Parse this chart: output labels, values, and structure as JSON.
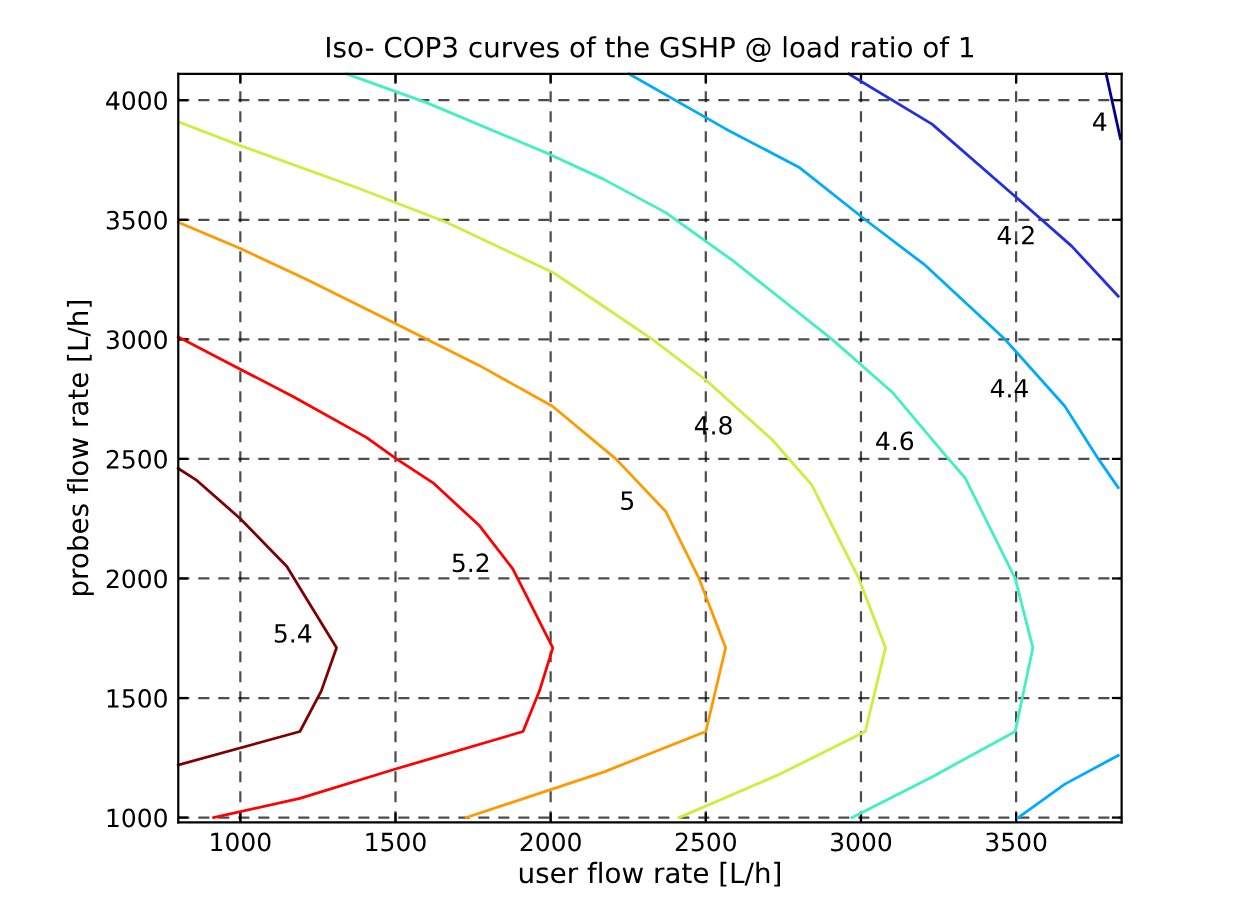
{
  "chart_data": {
    "type": "line",
    "title": "Iso- COP3 curves of the GSHP @ load ratio of 1",
    "xlabel": "user flow rate [L/h]",
    "ylabel": "probes flow rate [L/h]",
    "xlim": [
      800,
      3840
    ],
    "ylim": [
      980,
      4110
    ],
    "xticks": [
      1000,
      1500,
      2000,
      2500,
      3000,
      3500
    ],
    "yticks": [
      1000,
      1500,
      2000,
      2500,
      3000,
      3500,
      4000
    ],
    "grid": true,
    "marker": "none",
    "line_style": "solid",
    "series": [
      {
        "name": "5.4",
        "color": "#800000",
        "x": [
          800,
          860,
          1000,
          1150,
          1192,
          1310,
          1261,
          1192,
          800
        ],
        "values": [
          2460,
          2410,
          2250,
          2050,
          1960,
          1710,
          1530,
          1360,
          1220
        ]
      },
      {
        "name": "5.2",
        "color": "#ff0000",
        "x": [
          800,
          978,
          1171,
          1406,
          1503,
          1621,
          1771,
          1878,
          2007,
          1964,
          1911,
          1492,
          1192,
          914
        ],
        "values": [
          3010,
          2890,
          2760,
          2590,
          2500,
          2400,
          2220,
          2040,
          1710,
          1530,
          1360,
          1200,
          1080,
          1000
        ]
      },
      {
        "name": "5",
        "color": "#ff9900",
        "x": [
          800,
          1000,
          1214,
          1493,
          1771,
          2006,
          2210,
          2371,
          2478,
          2564,
          2500,
          2170,
          1728
        ],
        "values": [
          3490,
          3380,
          3250,
          3070,
          2890,
          2720,
          2500,
          2280,
          2000,
          1710,
          1360,
          1190,
          1000
        ]
      },
      {
        "name": "4.8",
        "color": "#c8f03c",
        "x": [
          800,
          1000,
          1385,
          1664,
          2007,
          2157,
          2328,
          2500,
          2714,
          2842,
          2993,
          3079,
          3014,
          2736,
          2414
        ],
        "values": [
          3910,
          3810,
          3630,
          3490,
          3280,
          3150,
          3000,
          2830,
          2580,
          2390,
          2000,
          1710,
          1360,
          1180,
          1000
        ]
      },
      {
        "name": "4.6",
        "color": "#40f0c0",
        "x": [
          1342,
          1600,
          1985,
          2170,
          2371,
          2586,
          2907,
          3100,
          3282,
          3336,
          3497,
          3554,
          3497,
          3229,
          2971
        ],
        "values": [
          4110,
          3990,
          3780,
          3670,
          3530,
          3330,
          3000,
          2780,
          2500,
          2420,
          2000,
          1710,
          1360,
          1170,
          1000
        ]
      },
      {
        "name": "4.4",
        "color": "#00aaff",
        "x": [
          2253,
          2564,
          2800,
          3014,
          3207,
          3464,
          3657,
          3765,
          3829,
          null,
          3829,
          3657,
          3507
        ],
        "values": [
          4110,
          3880,
          3720,
          3500,
          3310,
          3000,
          2720,
          2500,
          2380,
          null,
          1260,
          1140,
          1000
        ]
      },
      {
        "name": "4.2",
        "color": "#2030e0",
        "x": [
          2961,
          3229,
          3486,
          3679,
          3829
        ],
        "values": [
          4110,
          3900,
          3610,
          3390,
          3180
        ]
      },
      {
        "name": "4",
        "color": "#000090",
        "x": [
          3790,
          3836
        ],
        "values": [
          4110,
          3840
        ]
      }
    ]
  }
}
